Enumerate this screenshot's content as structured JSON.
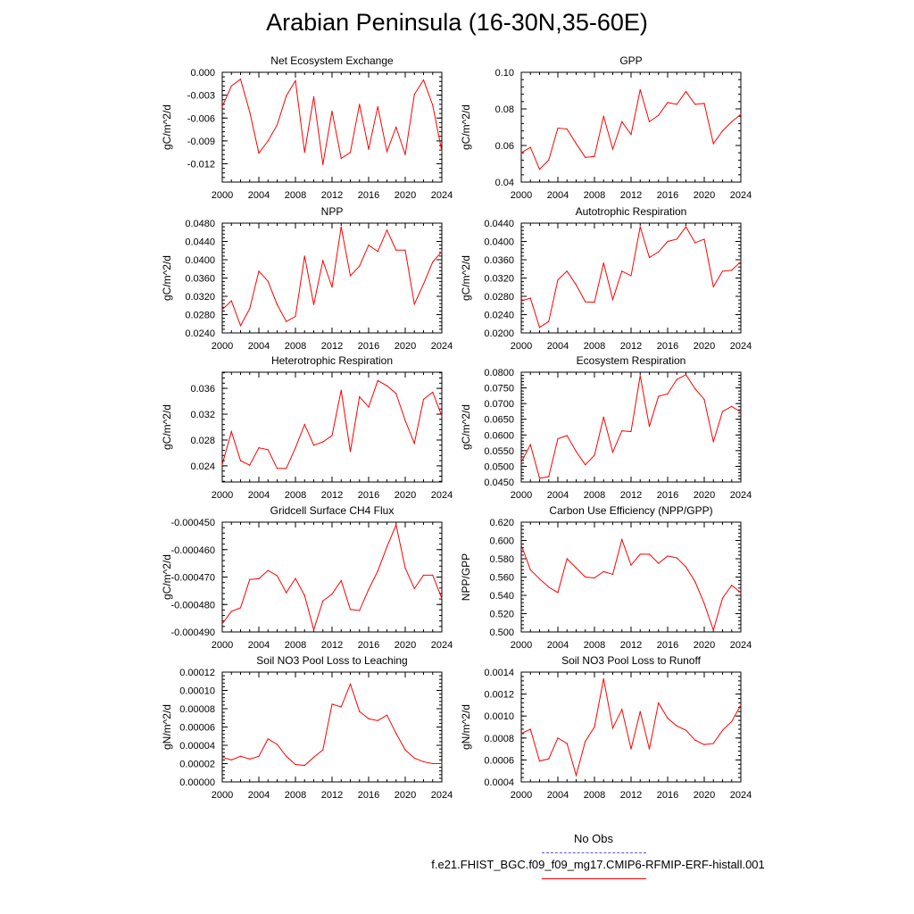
{
  "page_title": "Arabian Peninsula (16-30N,35-60E)",
  "series_color": "#ff0000",
  "obs_color": "#5555dd",
  "legend": {
    "obs_label": "No Obs",
    "case_label": "f.e21.FHIST_BGC.f09_f09_mg17.CMIP6-RFMIP-ERF-histall.001"
  },
  "chart_data": [
    {
      "type": "line",
      "title": "Net Ecosystem Exchange",
      "ylabel": "gC/m^2/d",
      "xlabel": "",
      "xlim": [
        2000,
        2024
      ],
      "ylim": [
        -0.0144,
        0.0
      ],
      "yticks": [
        0.0,
        -0.003,
        -0.006,
        -0.009,
        -0.012
      ],
      "ytick_labels": [
        "0.000",
        "-0.003",
        "-0.006",
        "-0.009",
        "-0.012"
      ],
      "xticks": [
        2000,
        2004,
        2008,
        2012,
        2016,
        2020,
        2024
      ],
      "xtick_labels": [
        "2000",
        "2004",
        "2008",
        "2012",
        "2016",
        "2020",
        "2024"
      ],
      "x": [
        2000,
        2001,
        2002,
        2003,
        2004,
        2005,
        2006,
        2007,
        2008,
        2009,
        2010,
        2011,
        2012,
        2013,
        2014,
        2015,
        2016,
        2017,
        2018,
        2019,
        2020,
        2021,
        2022,
        2023,
        2024
      ],
      "y": [
        -0.0045,
        -0.0018,
        -0.0009,
        -0.0052,
        -0.0106,
        -0.009,
        -0.0069,
        -0.0031,
        -0.0011,
        -0.0105,
        -0.0032,
        -0.0121,
        -0.0051,
        -0.0113,
        -0.0105,
        -0.0042,
        -0.0101,
        -0.0045,
        -0.0104,
        -0.0072,
        -0.0108,
        -0.0029,
        -0.001,
        -0.0043,
        -0.0104
      ]
    },
    {
      "type": "line",
      "title": "GPP",
      "ylabel": "gC/m^2/d",
      "xlabel": "",
      "xlim": [
        2000,
        2024
      ],
      "ylim": [
        0.04,
        0.1
      ],
      "yticks": [
        0.04,
        0.06,
        0.08,
        0.1
      ],
      "ytick_labels": [
        "0.04",
        "0.06",
        "0.08",
        "0.10"
      ],
      "xticks": [
        2000,
        2004,
        2008,
        2012,
        2016,
        2020,
        2024
      ],
      "xtick_labels": [
        "2000",
        "2004",
        "2008",
        "2012",
        "2016",
        "2020",
        "2024"
      ],
      "x": [
        2000,
        2001,
        2002,
        2003,
        2004,
        2005,
        2006,
        2007,
        2008,
        2009,
        2010,
        2011,
        2012,
        2013,
        2014,
        2015,
        2016,
        2017,
        2018,
        2019,
        2020,
        2021,
        2022,
        2023,
        2024
      ],
      "y": [
        0.056,
        0.059,
        0.047,
        0.052,
        0.0695,
        0.069,
        0.061,
        0.0535,
        0.054,
        0.076,
        0.058,
        0.073,
        0.066,
        0.0905,
        0.073,
        0.0765,
        0.0835,
        0.0825,
        0.0895,
        0.0825,
        0.083,
        0.061,
        0.068,
        0.073,
        0.077
      ]
    },
    {
      "type": "line",
      "title": "NPP",
      "ylabel": "gC/m^2/d",
      "xlabel": "",
      "xlim": [
        2000,
        2024
      ],
      "ylim": [
        0.024,
        0.048
      ],
      "yticks": [
        0.024,
        0.028,
        0.032,
        0.036,
        0.04,
        0.044,
        0.048
      ],
      "ytick_labels": [
        "0.0240",
        "0.0280",
        "0.0320",
        "0.0360",
        "0.0400",
        "0.0440",
        "0.0480"
      ],
      "xticks": [
        2000,
        2004,
        2008,
        2012,
        2016,
        2020,
        2024
      ],
      "xtick_labels": [
        "2000",
        "2004",
        "2008",
        "2012",
        "2016",
        "2020",
        "2024"
      ],
      "x": [
        2000,
        2001,
        2002,
        2003,
        2004,
        2005,
        2006,
        2007,
        2008,
        2009,
        2010,
        2011,
        2012,
        2013,
        2014,
        2015,
        2016,
        2017,
        2018,
        2019,
        2020,
        2021,
        2022,
        2023,
        2024
      ],
      "y": [
        0.0291,
        0.031,
        0.0256,
        0.0293,
        0.0375,
        0.0353,
        0.0302,
        0.0265,
        0.0276,
        0.0408,
        0.0302,
        0.0398,
        0.034,
        0.0472,
        0.0365,
        0.0386,
        0.0432,
        0.0418,
        0.0465,
        0.0421,
        0.0421,
        0.0303,
        0.0347,
        0.0395,
        0.0418
      ]
    },
    {
      "type": "line",
      "title": "Autotrophic Respiration",
      "ylabel": "gC/m^2/d",
      "xlabel": "",
      "xlim": [
        2000,
        2024
      ],
      "ylim": [
        0.02,
        0.044
      ],
      "yticks": [
        0.02,
        0.024,
        0.028,
        0.032,
        0.036,
        0.04,
        0.044
      ],
      "ytick_labels": [
        "0.0200",
        "0.0240",
        "0.0280",
        "0.0320",
        "0.0360",
        "0.0400",
        "0.0440"
      ],
      "xticks": [
        2000,
        2004,
        2008,
        2012,
        2016,
        2020,
        2024
      ],
      "xtick_labels": [
        "2000",
        "2004",
        "2008",
        "2012",
        "2016",
        "2020",
        "2024"
      ],
      "x": [
        2000,
        2001,
        2002,
        2003,
        2004,
        2005,
        2006,
        2007,
        2008,
        2009,
        2010,
        2011,
        2012,
        2013,
        2014,
        2015,
        2016,
        2017,
        2018,
        2019,
        2020,
        2021,
        2022,
        2023,
        2024
      ],
      "y": [
        0.027,
        0.0276,
        0.0212,
        0.0225,
        0.0316,
        0.0335,
        0.0305,
        0.0268,
        0.0267,
        0.0353,
        0.0273,
        0.0335,
        0.0325,
        0.0432,
        0.0365,
        0.0377,
        0.04,
        0.0405,
        0.0432,
        0.0397,
        0.0405,
        0.0301,
        0.0335,
        0.0337,
        0.0356
      ]
    },
    {
      "type": "line",
      "title": "Heterotrophic Respiration",
      "ylabel": "gC/m^2/d",
      "xlabel": "",
      "xlim": [
        2000,
        2024
      ],
      "ylim": [
        0.0215,
        0.0385
      ],
      "yticks": [
        0.024,
        0.028,
        0.032,
        0.036
      ],
      "ytick_labels": [
        "0.024",
        "0.028",
        "0.032",
        "0.036"
      ],
      "xticks": [
        2000,
        2004,
        2008,
        2012,
        2016,
        2020,
        2024
      ],
      "xtick_labels": [
        "2000",
        "2004",
        "2008",
        "2012",
        "2016",
        "2020",
        "2024"
      ],
      "x": [
        2000,
        2001,
        2002,
        2003,
        2004,
        2005,
        2006,
        2007,
        2008,
        2009,
        2010,
        2011,
        2012,
        2013,
        2014,
        2015,
        2016,
        2017,
        2018,
        2019,
        2020,
        2021,
        2022,
        2023,
        2024
      ],
      "y": [
        0.0242,
        0.0293,
        0.0248,
        0.0241,
        0.0268,
        0.0265,
        0.0236,
        0.0236,
        0.0268,
        0.0304,
        0.0272,
        0.0277,
        0.0287,
        0.0357,
        0.0262,
        0.0347,
        0.0331,
        0.0372,
        0.0364,
        0.0352,
        0.031,
        0.0275,
        0.0343,
        0.0354,
        0.0317
      ]
    },
    {
      "type": "line",
      "title": "Ecosystem Respiration",
      "ylabel": "gC/m^2/d",
      "xlabel": "",
      "xlim": [
        2000,
        2024
      ],
      "ylim": [
        0.045,
        0.08
      ],
      "yticks": [
        0.045,
        0.05,
        0.055,
        0.06,
        0.065,
        0.07,
        0.075,
        0.08
      ],
      "ytick_labels": [
        "0.0450",
        "0.0500",
        "0.0550",
        "0.0600",
        "0.0650",
        "0.0700",
        "0.0750",
        "0.0800"
      ],
      "xticks": [
        2000,
        2004,
        2008,
        2012,
        2016,
        2020,
        2024
      ],
      "xtick_labels": [
        "2000",
        "2004",
        "2008",
        "2012",
        "2016",
        "2020",
        "2024"
      ],
      "x": [
        2000,
        2001,
        2002,
        2003,
        2004,
        2005,
        2006,
        2007,
        2008,
        2009,
        2010,
        2011,
        2012,
        2013,
        2014,
        2015,
        2016,
        2017,
        2018,
        2019,
        2020,
        2021,
        2022,
        2023,
        2024
      ],
      "y": [
        0.0513,
        0.0569,
        0.0462,
        0.0467,
        0.0588,
        0.0598,
        0.0547,
        0.0505,
        0.0535,
        0.0657,
        0.0545,
        0.0613,
        0.0611,
        0.0789,
        0.0627,
        0.0723,
        0.0731,
        0.0777,
        0.0792,
        0.0747,
        0.0713,
        0.0578,
        0.0675,
        0.0691,
        0.0673
      ]
    },
    {
      "type": "line",
      "title": "Gridcell Surface CH4 Flux",
      "ylabel": "gC/m^2/d",
      "xlabel": "",
      "xlim": [
        2000,
        2024
      ],
      "ylim": [
        -0.00049,
        -0.00045
      ],
      "yticks": [
        -0.00045,
        -0.00046,
        -0.00047,
        -0.00048,
        -0.00049
      ],
      "ytick_labels": [
        "-0.000450",
        "-0.000460",
        "-0.000470",
        "-0.000480",
        "-0.000490"
      ],
      "xticks": [
        2000,
        2004,
        2008,
        2012,
        2016,
        2020,
        2024
      ],
      "xtick_labels": [
        "2000",
        "2004",
        "2008",
        "2012",
        "2016",
        "2020",
        "2024"
      ],
      "x": [
        2000,
        2001,
        2002,
        2003,
        2004,
        2005,
        2006,
        2007,
        2008,
        2009,
        2010,
        2011,
        2012,
        2013,
        2014,
        2015,
        2016,
        2017,
        2018,
        2019,
        2020,
        2021,
        2022,
        2023,
        2024
      ],
      "y": [
        -0.000487,
        -0.0004825,
        -0.0004812,
        -0.0004709,
        -0.0004706,
        -0.0004676,
        -0.0004695,
        -0.0004757,
        -0.0004705,
        -0.0004767,
        -0.0004892,
        -0.0004787,
        -0.0004762,
        -0.0004713,
        -0.0004818,
        -0.0004822,
        -0.0004745,
        -0.0004678,
        -0.000459,
        -0.000451,
        -0.0004667,
        -0.0004742,
        -0.0004693,
        -0.0004693,
        -0.0004778
      ]
    },
    {
      "type": "line",
      "title": "Carbon Use Efficiency (NPP/GPP)",
      "ylabel": "NPP/GPP",
      "xlabel": "",
      "xlim": [
        2000,
        2024
      ],
      "ylim": [
        0.5,
        0.62
      ],
      "yticks": [
        0.5,
        0.52,
        0.54,
        0.56,
        0.58,
        0.6,
        0.62
      ],
      "ytick_labels": [
        "0.500",
        "0.520",
        "0.540",
        "0.560",
        "0.580",
        "0.600",
        "0.620"
      ],
      "xticks": [
        2000,
        2004,
        2008,
        2012,
        2016,
        2020,
        2024
      ],
      "xtick_labels": [
        "2000",
        "2004",
        "2008",
        "2012",
        "2016",
        "2020",
        "2024"
      ],
      "x": [
        2000,
        2001,
        2002,
        2003,
        2004,
        2005,
        2006,
        2007,
        2008,
        2009,
        2010,
        2011,
        2012,
        2013,
        2014,
        2015,
        2016,
        2017,
        2018,
        2019,
        2020,
        2021,
        2022,
        2023,
        2024
      ],
      "y": [
        0.595,
        0.568,
        0.558,
        0.549,
        0.543,
        0.58,
        0.57,
        0.56,
        0.559,
        0.566,
        0.563,
        0.601,
        0.573,
        0.585,
        0.585,
        0.575,
        0.583,
        0.581,
        0.571,
        0.555,
        0.531,
        0.502,
        0.537,
        0.551,
        0.543
      ]
    },
    {
      "type": "line",
      "title": "Soil NO3 Pool Loss to Leaching",
      "ylabel": "gN/m^2/d",
      "xlabel": "",
      "xlim": [
        2000,
        2024
      ],
      "ylim": [
        0.0,
        0.00012
      ],
      "yticks": [
        0.0,
        2e-05,
        4e-05,
        6e-05,
        8e-05,
        0.0001,
        0.00012
      ],
      "ytick_labels": [
        "0.00000",
        "0.00002",
        "0.00004",
        "0.00006",
        "0.00008",
        "0.00010",
        "0.00012"
      ],
      "xticks": [
        2000,
        2004,
        2008,
        2012,
        2016,
        2020,
        2024
      ],
      "xtick_labels": [
        "2000",
        "2004",
        "2008",
        "2012",
        "2016",
        "2020",
        "2024"
      ],
      "x": [
        2000,
        2001,
        2002,
        2003,
        2004,
        2005,
        2006,
        2007,
        2008,
        2009,
        2010,
        2011,
        2012,
        2013,
        2014,
        2015,
        2016,
        2017,
        2018,
        2019,
        2020,
        2021,
        2022,
        2023,
        2024
      ],
      "y": [
        2.7e-05,
        2.4e-05,
        2.8e-05,
        2.5e-05,
        2.8e-05,
        4.7e-05,
        4.1e-05,
        2.8e-05,
        1.9e-05,
        1.8e-05,
        2.7e-05,
        3.5e-05,
        8.5e-05,
        8.2e-05,
        0.000107,
        7.7e-05,
        6.9e-05,
        6.7e-05,
        7.3e-05,
        5.3e-05,
        3.5e-05,
        2.6e-05,
        2.2e-05,
        2e-05,
        2e-05
      ]
    },
    {
      "type": "line",
      "title": "Soil NO3 Pool Loss to Runoff",
      "ylabel": "gN/m^2/d",
      "xlabel": "",
      "xlim": [
        2000,
        2024
      ],
      "ylim": [
        0.0004,
        0.0014
      ],
      "yticks": [
        0.0004,
        0.0006,
        0.0008,
        0.001,
        0.0012,
        0.0014
      ],
      "ytick_labels": [
        "0.0004",
        "0.0006",
        "0.0008",
        "0.0010",
        "0.0012",
        "0.0014"
      ],
      "xticks": [
        2000,
        2004,
        2008,
        2012,
        2016,
        2020,
        2024
      ],
      "xtick_labels": [
        "2000",
        "2004",
        "2008",
        "2012",
        "2016",
        "2020",
        "2024"
      ],
      "x": [
        2000,
        2001,
        2002,
        2003,
        2004,
        2005,
        2006,
        2007,
        2008,
        2009,
        2010,
        2011,
        2012,
        2013,
        2014,
        2015,
        2016,
        2017,
        2018,
        2019,
        2020,
        2021,
        2022,
        2023,
        2024
      ],
      "y": [
        0.00084,
        0.00088,
        0.00059,
        0.00061,
        0.0008,
        0.00075,
        0.00046,
        0.00077,
        0.0009,
        0.00134,
        0.00089,
        0.00106,
        0.0007,
        0.00104,
        0.0007,
        0.00112,
        0.00098,
        0.00091,
        0.00087,
        0.00078,
        0.00074,
        0.00075,
        0.00087,
        0.00095,
        0.0011
      ]
    }
  ]
}
